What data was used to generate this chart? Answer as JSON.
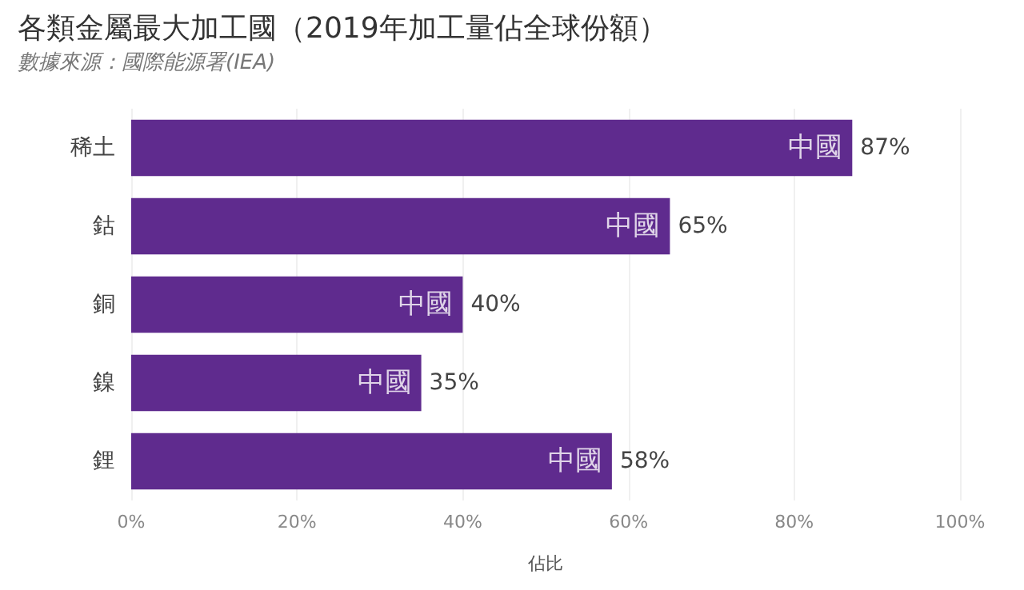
{
  "chart_data": {
    "type": "bar",
    "orientation": "horizontal",
    "title": "各類金屬最大加工國（2019年加工量佔全球份額）",
    "subtitle": "數據來源：國際能源署(IEA)",
    "xlabel": "佔比",
    "categories": [
      "稀土",
      "鈷",
      "銅",
      "鎳",
      "鋰"
    ],
    "series": [
      {
        "color": "#5f2b8e",
        "values": [
          87,
          65,
          40,
          35,
          58
        ],
        "value_labels": [
          "87%",
          "65%",
          "40%",
          "35%",
          "58%"
        ]
      }
    ],
    "annotations": [
      {
        "text": "中國",
        "x": 87,
        "y": "稀土"
      },
      {
        "text": "中國",
        "x": 65,
        "y": "鈷"
      },
      {
        "text": "中國",
        "x": 40,
        "y": "銅"
      },
      {
        "text": "中國",
        "x": 35,
        "y": "鎳"
      },
      {
        "text": "中國",
        "x": 58,
        "y": "鋰"
      }
    ],
    "xlim": [
      0,
      100
    ],
    "xticks": [
      {
        "value": 0,
        "label": "0%"
      },
      {
        "value": 20,
        "label": "20%"
      },
      {
        "value": 40,
        "label": "40%"
      },
      {
        "value": 60,
        "label": "60%"
      },
      {
        "value": 80,
        "label": "80%"
      },
      {
        "value": 100,
        "label": "100%"
      }
    ],
    "grid": "x"
  }
}
